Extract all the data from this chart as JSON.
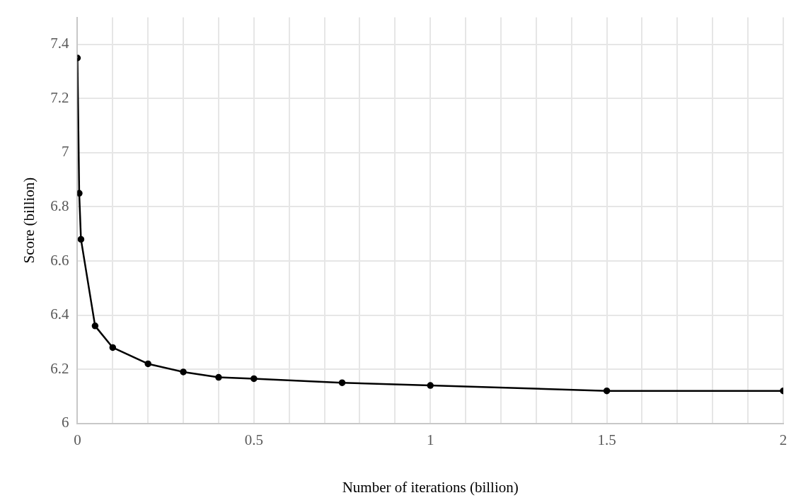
{
  "chart_data": {
    "type": "line",
    "xlabel": "Number of iterations (billion)",
    "ylabel": "Score (billion)",
    "x": [
      0,
      0.005,
      0.01,
      0.05,
      0.1,
      0.2,
      0.3,
      0.4,
      0.5,
      0.75,
      1,
      1.5,
      2
    ],
    "series": [
      {
        "color": "#000000",
        "values": [
          7.35,
          6.85,
          6.68,
          6.36,
          6.28,
          6.22,
          6.19,
          6.17,
          6.165,
          6.15,
          6.14,
          6.12,
          6.12
        ]
      }
    ],
    "xlim": [
      0,
      2
    ],
    "xticks": [
      0,
      {
        "value": 0.1,
        "label": null
      },
      {
        "value": 0.2,
        "label": null
      },
      {
        "value": 0.3,
        "label": null
      },
      {
        "value": 0.4,
        "label": null
      },
      0.5,
      {
        "value": 0.6,
        "label": null
      },
      {
        "value": 0.7,
        "label": null
      },
      {
        "value": 0.8,
        "label": null
      },
      {
        "value": 0.9,
        "label": null
      },
      1,
      {
        "value": 1.1,
        "label": null
      },
      {
        "value": 1.2,
        "label": null
      },
      {
        "value": 1.3,
        "label": null
      },
      {
        "value": 1.4,
        "label": null
      },
      1.5,
      {
        "value": 1.6,
        "label": null
      },
      {
        "value": 1.7,
        "label": null
      },
      {
        "value": 1.8,
        "label": null
      },
      {
        "value": 1.9,
        "label": null
      },
      2
    ],
    "ylim": [
      6,
      7.5
    ],
    "yticks": [
      6,
      6.2,
      6.4,
      6.6,
      6.8,
      7,
      7.2,
      7.4
    ],
    "grid": true,
    "legend": false,
    "marker": "circle",
    "line_style": "solid"
  }
}
